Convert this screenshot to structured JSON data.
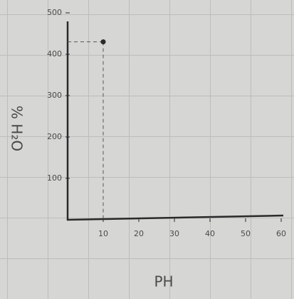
{
  "chart_data": {
    "type": "scatter",
    "x_label": "PH",
    "y_label": "% H₂O",
    "x": [
      10
    ],
    "values": [
      430
    ],
    "color": "#2a2a2a",
    "xlim": [
      0,
      60
    ],
    "xticks": [
      10,
      20,
      30,
      40,
      50,
      60
    ],
    "ylim": [
      0,
      500
    ],
    "yticks": [
      100,
      200,
      300,
      400,
      500
    ]
  }
}
